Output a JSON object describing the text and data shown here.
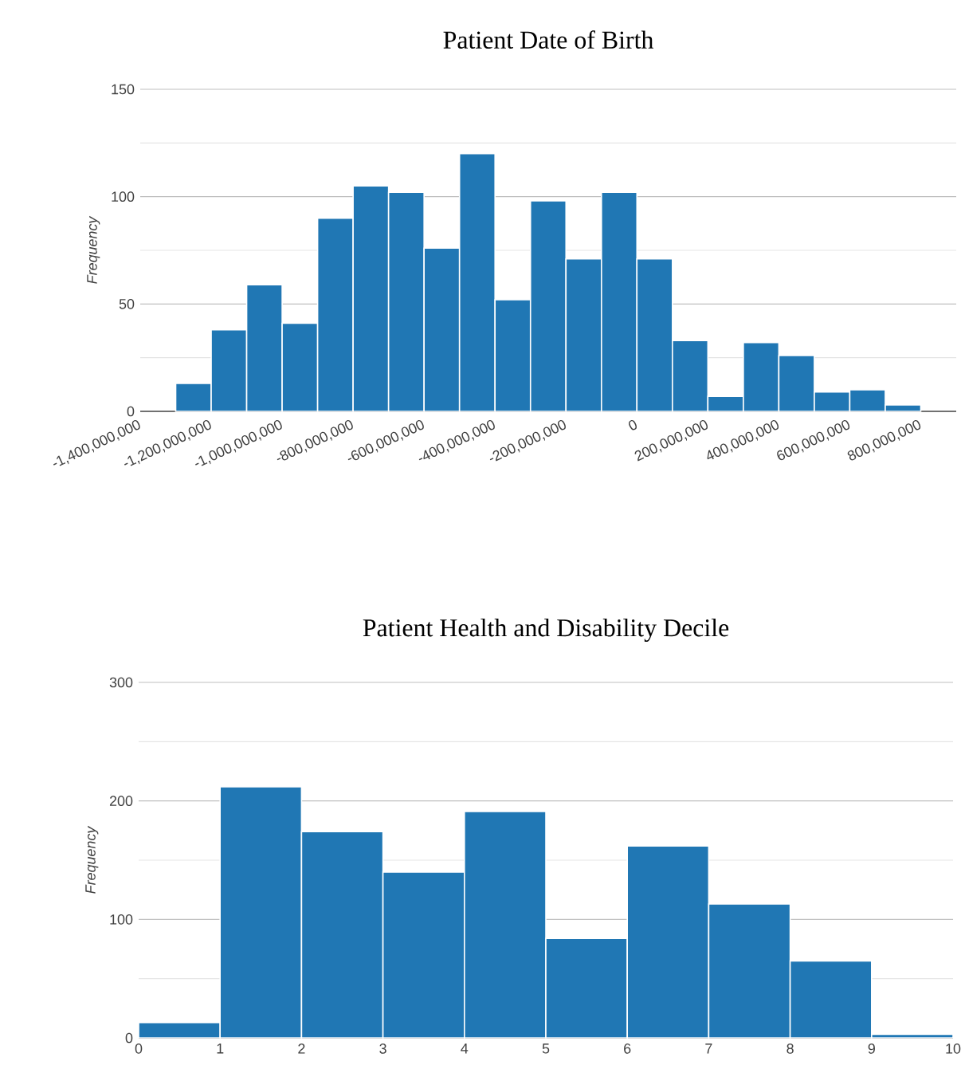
{
  "chart_data": [
    {
      "type": "histogram",
      "title": "Patient Date of Birth",
      "ylabel": "Frequency",
      "color": "#2077b4",
      "grid": "y",
      "bins": [
        -1300000000,
        -1200000000,
        -1100000000,
        -1000000000,
        -900000000,
        -800000000,
        -700000000,
        -600000000,
        -500000000,
        -400000000,
        -300000000,
        -200000000,
        -100000000,
        0,
        100000000,
        200000000,
        300000000,
        400000000,
        500000000,
        600000000,
        700000000,
        800000000
      ],
      "values": [
        13,
        38,
        59,
        41,
        90,
        105,
        102,
        76,
        120,
        52,
        98,
        71,
        102,
        71,
        33,
        7,
        32,
        26,
        9,
        10,
        3
      ],
      "xlim": [
        -1400000000,
        900000000
      ],
      "xticks": [
        {
          "value": -1400000000,
          "label": "-1,400,000,000"
        },
        {
          "value": -1200000000,
          "label": "-1,200,000,000"
        },
        {
          "value": -1000000000,
          "label": "-1,000,000,000"
        },
        {
          "value": -800000000,
          "label": "-800,000,000"
        },
        {
          "value": -600000000,
          "label": "-600,000,000"
        },
        {
          "value": -400000000,
          "label": "-400,000,000"
        },
        {
          "value": -200000000,
          "label": "-200,000,000"
        },
        {
          "value": 0,
          "label": "0"
        },
        {
          "value": 200000000,
          "label": "200,000,000"
        },
        {
          "value": 400000000,
          "label": "400,000,000"
        },
        {
          "value": 600000000,
          "label": "600,000,000"
        },
        {
          "value": 800000000,
          "label": "800,000,000"
        }
      ],
      "ylim": [
        0,
        150
      ],
      "yticks": [
        0,
        {
          "value": 25,
          "label": null
        },
        50,
        {
          "value": 75,
          "label": null
        },
        100,
        {
          "value": 125,
          "label": null
        },
        150
      ]
    },
    {
      "type": "histogram",
      "title": "Patient Health and Disability Decile",
      "ylabel": "Frequency",
      "color": "#2077b4",
      "grid": "y",
      "bins": [
        0,
        1,
        2,
        3,
        4,
        5,
        6,
        7,
        8,
        9,
        10
      ],
      "values": [
        13,
        212,
        174,
        140,
        191,
        84,
        162,
        113,
        65,
        3
      ],
      "xlim": [
        0,
        10
      ],
      "xticks": [
        0,
        1,
        2,
        3,
        4,
        5,
        6,
        7,
        8,
        9,
        10
      ],
      "ylim": [
        0,
        300
      ],
      "yticks": [
        0,
        {
          "value": 50,
          "label": null
        },
        100,
        {
          "value": 150,
          "label": null
        },
        200,
        {
          "value": 250,
          "label": null
        },
        300
      ]
    }
  ]
}
